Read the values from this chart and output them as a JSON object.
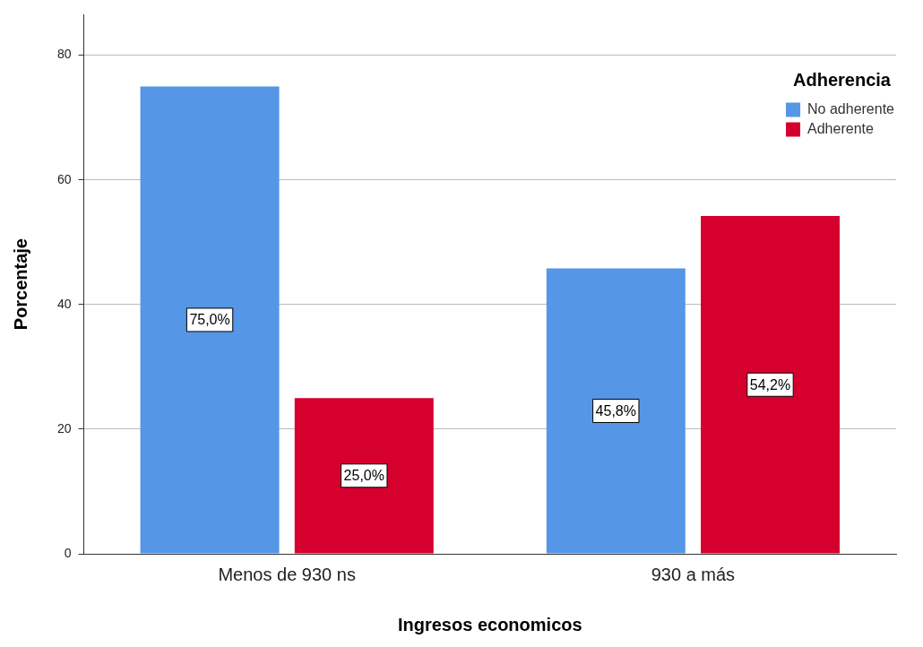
{
  "chart_data": {
    "type": "bar",
    "xlabel": "Ingresos economicos",
    "ylabel": "Porcentaje",
    "legend_title": "Adherencia",
    "categories": [
      "Menos de 930 ns",
      "930 a más"
    ],
    "series": [
      {
        "name": "No adherente",
        "color": "#5596e6",
        "values": [
          75.0,
          45.8
        ],
        "value_labels": [
          "75,0%",
          "45,8%"
        ]
      },
      {
        "name": "Adherente",
        "color": "#d6002e",
        "values": [
          25.0,
          54.2
        ],
        "value_labels": [
          "25,0%",
          "54,2%"
        ]
      }
    ],
    "ylim": [
      0,
      86.5
    ],
    "yticks": [
      0,
      20,
      40,
      60,
      80
    ],
    "grid": "y",
    "legend": "top right"
  }
}
